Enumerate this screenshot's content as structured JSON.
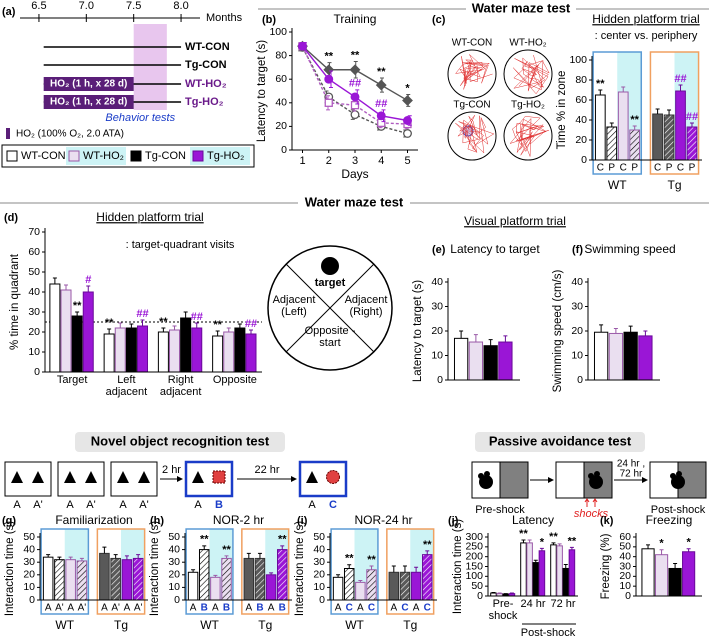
{
  "headers": [
    "Water maze test",
    "Water maze test",
    "Visual platform trial",
    "Novel object recognition test",
    "Passive avoidance test"
  ],
  "timeline": {
    "panel": "(a)",
    "xlim": [
      6.3,
      8.2
    ],
    "ticks": [
      6.5,
      {
        "value": 7,
        "label": "7.0"
      },
      7.5,
      {
        "value": 8,
        "label": "8.0"
      }
    ],
    "unit": "Months",
    "period": [
      6.55,
      8.0
    ],
    "treatment_period": [
      6.55,
      7.5
    ],
    "behavior_period": [
      7.5,
      7.85
    ],
    "behavior_label": "Behavior tests",
    "groups": [
      {
        "name": "WT-CON"
      },
      {
        "name": "Tg-CON"
      },
      {
        "name": "WT-HO₂",
        "treatment": "HO₂ (1 h, x 28 d)"
      },
      {
        "name": "Tg-HO₂",
        "treatment": "HO₂ (1 h, x 28 d)"
      }
    ],
    "note": "HO₂ (100% O₂, 2.0 ATA)"
  },
  "quadrant": {
    "target": "target",
    "left": "Adjacent (Left)",
    "right": "Adjacent (Right)",
    "opposite": "Opposite - start"
  },
  "nor_scheme": {
    "sessions": [
      [
        "A",
        "A'"
      ],
      [
        "A",
        "A'"
      ],
      [
        "A",
        "A'"
      ],
      [
        "A",
        "B"
      ],
      [
        "A",
        "C"
      ]
    ],
    "intervals": [
      "2 hr",
      "22 hr"
    ]
  },
  "passive_scheme": {
    "stages": [
      "Pre-shock",
      "Post-shock"
    ],
    "shock_label": "shocks",
    "interval": [
      "24 hr ,",
      "72 hr"
    ]
  },
  "chart_data": [
    {
      "type": "line",
      "panel": "(b)",
      "title": "Training",
      "xlabel": "Days",
      "ylabel": "Latency to target (s)",
      "x": [
        1,
        2,
        3,
        4,
        5
      ],
      "xlim": [
        0.6,
        5.4
      ],
      "xticks": [
        1,
        2,
        3,
        4,
        5
      ],
      "ylim": [
        0,
        100
      ],
      "yticks": [
        0,
        20,
        40,
        60,
        80,
        100
      ],
      "series": [
        {
          "color": "#ffffff",
          "edge": "#555555",
          "dash": true,
          "marker": "circle",
          "values": [
            87,
            45,
            30,
            20,
            14
          ],
          "errors": [
            3,
            5,
            4,
            3,
            3
          ]
        },
        {
          "color": "#ffffff",
          "edge": "#b05cc0",
          "dash": true,
          "marker": "square",
          "values": [
            88,
            40,
            38,
            23,
            22
          ],
          "errors": [
            3,
            6,
            5,
            4,
            4
          ]
        },
        {
          "color": "#555555",
          "edge": "#555555",
          "dash": false,
          "marker": "diamond",
          "values": [
            88,
            68,
            68,
            55,
            42
          ],
          "errors": [
            3,
            6,
            7,
            6,
            5
          ]
        },
        {
          "color": "#9a16d6",
          "edge": "#9a16d6",
          "dash": false,
          "marker": "circle",
          "values": [
            88,
            60,
            45,
            29,
            25
          ],
          "errors": [
            3,
            7,
            6,
            5,
            4
          ]
        }
      ],
      "annotations": [
        {
          "x": 2,
          "series": 2,
          "text": "**"
        },
        {
          "x": 3,
          "series": 2,
          "text": "**"
        },
        {
          "x": 4,
          "series": 2,
          "text": "**"
        },
        {
          "x": 5,
          "series": 2,
          "text": "*"
        },
        {
          "x": 3,
          "series": 3,
          "text": "##"
        },
        {
          "x": 4,
          "series": 3,
          "text": "##"
        }
      ]
    },
    {
      "type": "bar",
      "panel": "(c)",
      "title": "Hidden platform trial",
      "subtitle": ": center vs. periphery",
      "ylabel": "Time % in zone",
      "track_labels": [
        "WT-CON",
        "WT-HO₂",
        "Tg-CON",
        "Tg-HO₂"
      ],
      "categories": [
        "C",
        "P"
      ],
      "groups": [
        "WT",
        "Tg"
      ],
      "ylim": [
        0,
        100
      ],
      "yticks": [
        0,
        20,
        40,
        60,
        80,
        100
      ],
      "series": [
        {
          "color": "#ffffff",
          "edge": "#000000",
          "values": [
            65,
            33
          ],
          "errors": [
            5,
            4
          ]
        },
        {
          "color": "#eadff0",
          "edge": "#9a5aa8",
          "values": [
            68,
            30
          ],
          "errors": [
            5,
            4
          ]
        },
        {
          "color": "#595959",
          "edge": "#333333",
          "values": [
            46,
            45
          ],
          "errors": [
            5,
            5
          ]
        },
        {
          "color": "#9a16d6",
          "edge": "#6a0a9a",
          "values": [
            69,
            33
          ],
          "errors": [
            6,
            4
          ]
        }
      ],
      "annotations": [
        {
          "series": 0,
          "category": 0,
          "text": "**"
        },
        {
          "series": 1,
          "category": 1,
          "text": "**"
        },
        {
          "series": 3,
          "category": 0,
          "text": "##"
        },
        {
          "series": 3,
          "category": 1,
          "text": "##"
        }
      ]
    },
    {
      "type": "bar",
      "panel": "(d)",
      "title": "Hidden platform trial",
      "subtitle": ": target-quadrant visits",
      "ylabel": "% time in quadrant",
      "categories": [
        "Target",
        "Left adjacent",
        "Right adjacent",
        "Opposite"
      ],
      "ylim": [
        0,
        70
      ],
      "yticks": [
        0,
        10,
        20,
        30,
        40,
        50,
        60,
        70
      ],
      "reference_line": 25,
      "series": [
        {
          "name": "WT-CON",
          "color": "#ffffff",
          "edge": "#000000",
          "values": [
            44,
            19,
            20,
            18
          ],
          "errors": [
            3,
            2.5,
            2,
            2.5
          ]
        },
        {
          "name": "WT-HO₂",
          "color": "#eadff0",
          "edge": "#9a5aa8",
          "values": [
            41,
            22,
            21,
            20
          ],
          "errors": [
            2.5,
            2.5,
            2,
            2
          ]
        },
        {
          "name": "Tg-CON",
          "color": "#000000",
          "edge": "#000000",
          "values": [
            28,
            22,
            27,
            22
          ],
          "errors": [
            2,
            2,
            3,
            2
          ]
        },
        {
          "name": "Tg-HO₂",
          "color": "#9a16d6",
          "edge": "#6a0a9a",
          "values": [
            40,
            23,
            22,
            19
          ],
          "errors": [
            3,
            3,
            2.5,
            2
          ]
        }
      ],
      "annotations": [
        {
          "series": 2,
          "category": 0,
          "text": "**"
        },
        {
          "series": 3,
          "category": 0,
          "text": "#"
        },
        {
          "series": 0,
          "category": 1,
          "text": "**"
        },
        {
          "series": 3,
          "category": 1,
          "text": "##"
        },
        {
          "series": 0,
          "category": 2,
          "text": "**"
        },
        {
          "series": 3,
          "category": 2,
          "text": "##"
        },
        {
          "series": 0,
          "category": 3,
          "text": "**"
        },
        {
          "series": 3,
          "category": 3,
          "text": "##"
        }
      ]
    },
    {
      "type": "bar",
      "panel": "(e)",
      "title": "Latency to target",
      "ylabel": "Latency to target (s)",
      "categories": [
        null
      ],
      "ylim": [
        0,
        40
      ],
      "yticks": [
        0,
        10,
        20,
        30,
        40
      ],
      "series": [
        {
          "color": "#ffffff",
          "edge": "#000000",
          "values": [
            17
          ],
          "errors": [
            3
          ]
        },
        {
          "color": "#eadff0",
          "edge": "#9a5aa8",
          "values": [
            15.5
          ],
          "errors": [
            3
          ]
        },
        {
          "color": "#000000",
          "edge": "#000000",
          "values": [
            14
          ],
          "errors": [
            2.5
          ]
        },
        {
          "color": "#9a16d6",
          "edge": "#6a0a9a",
          "values": [
            15.5
          ],
          "errors": [
            2.5
          ]
        }
      ]
    },
    {
      "type": "bar",
      "panel": "(f)",
      "title": "Swimming speed",
      "ylabel": "Swimming speed (cm/s)",
      "categories": [
        null
      ],
      "ylim": [
        0,
        40
      ],
      "yticks": [
        0,
        10,
        20,
        30,
        40
      ],
      "series": [
        {
          "color": "#ffffff",
          "edge": "#000000",
          "values": [
            19.5
          ],
          "errors": [
            3
          ]
        },
        {
          "color": "#eadff0",
          "edge": "#9a5aa8",
          "values": [
            19
          ],
          "errors": [
            2
          ]
        },
        {
          "color": "#000000",
          "edge": "#000000",
          "values": [
            19.5
          ],
          "errors": [
            2.5
          ]
        },
        {
          "color": "#9a16d6",
          "edge": "#6a0a9a",
          "values": [
            18
          ],
          "errors": [
            2
          ]
        }
      ]
    },
    {
      "type": "bar",
      "panel": "(g)",
      "title": "Familiarization",
      "ylabel": "Interaction time (s)",
      "categories": [
        "A",
        "A'"
      ],
      "groups": [
        "WT",
        "Tg"
      ],
      "ylim": [
        0,
        50
      ],
      "yticks": [
        0,
        10,
        20,
        30,
        40,
        50
      ],
      "series": [
        {
          "color": "#ffffff",
          "edge": "#000000",
          "values": [
            34,
            32
          ],
          "errors": [
            2,
            2
          ]
        },
        {
          "color": "#eadff0",
          "edge": "#9a5aa8",
          "values": [
            32,
            31
          ],
          "errors": [
            2,
            2
          ]
        },
        {
          "color": "#595959",
          "edge": "#333333",
          "values": [
            37,
            33
          ],
          "errors": [
            5,
            3
          ]
        },
        {
          "color": "#9a16d6",
          "edge": "#6a0a9a",
          "values": [
            32,
            33
          ],
          "errors": [
            3,
            3
          ]
        }
      ]
    },
    {
      "type": "bar",
      "panel": "(h)",
      "title": "NOR-2 hr",
      "ylabel": "Interaction time (s)",
      "categories": [
        "A",
        "B"
      ],
      "groups": [
        "WT",
        "Tg"
      ],
      "ylim": [
        0,
        50
      ],
      "yticks": [
        0,
        10,
        20,
        30,
        40,
        50
      ],
      "series": [
        {
          "color": "#ffffff",
          "edge": "#000000",
          "values": [
            22,
            40
          ],
          "errors": [
            2,
            3
          ]
        },
        {
          "color": "#eadff0",
          "edge": "#9a5aa8",
          "values": [
            18,
            33
          ],
          "errors": [
            1.5,
            2
          ]
        },
        {
          "color": "#595959",
          "edge": "#333333",
          "values": [
            33,
            33
          ],
          "errors": [
            4,
            4
          ]
        },
        {
          "color": "#9a16d6",
          "edge": "#6a0a9a",
          "values": [
            20,
            40
          ],
          "errors": [
            1.5,
            3
          ]
        }
      ],
      "annotations": [
        {
          "series": 0,
          "category": 1,
          "text": "**"
        },
        {
          "series": 1,
          "category": 1,
          "text": "**"
        },
        {
          "series": 3,
          "category": 1,
          "text": "**"
        }
      ]
    },
    {
      "type": "bar",
      "panel": "(i)",
      "title": "NOR-24 hr",
      "ylabel": "Interaction time (s)",
      "categories": [
        "A",
        "C"
      ],
      "groups": [
        "WT",
        "Tg"
      ],
      "ylim": [
        0,
        50
      ],
      "yticks": [
        0,
        10,
        20,
        30,
        40,
        50
      ],
      "series": [
        {
          "color": "#ffffff",
          "edge": "#000000",
          "values": [
            18,
            25
          ],
          "errors": [
            2,
            3
          ]
        },
        {
          "color": "#eadff0",
          "edge": "#9a5aa8",
          "values": [
            14,
            24
          ],
          "errors": [
            1.5,
            3
          ]
        },
        {
          "color": "#595959",
          "edge": "#333333",
          "values": [
            22,
            22
          ],
          "errors": [
            5,
            5
          ]
        },
        {
          "color": "#9a16d6",
          "edge": "#6a0a9a",
          "values": [
            22,
            36
          ],
          "errors": [
            4,
            3
          ]
        }
      ],
      "annotations": [
        {
          "series": 0,
          "category": 1,
          "text": "**"
        },
        {
          "series": 1,
          "category": 1,
          "text": "**"
        },
        {
          "series": 3,
          "category": 1,
          "text": "**"
        }
      ]
    },
    {
      "type": "bar",
      "panel": "(j)",
      "title": "Latency",
      "ylabel": "Interaction time (s)",
      "categories": [
        "Pre-shock",
        "24 hr",
        "72 hr"
      ],
      "group_label": "Post-shock",
      "ylim": [
        0,
        300
      ],
      "yticks": [
        0,
        50,
        100,
        150,
        200,
        250,
        300
      ],
      "series": [
        {
          "color": "#ffffff",
          "edge": "#000000",
          "values": [
            15,
            270,
            260
          ],
          "errors": [
            3,
            15,
            10
          ]
        },
        {
          "color": "#eadff0",
          "edge": "#9a5aa8",
          "values": [
            12,
            270,
            255
          ],
          "errors": [
            3,
            15,
            10
          ]
        },
        {
          "color": "#000000",
          "edge": "#000000",
          "values": [
            10,
            170,
            140
          ],
          "errors": [
            2,
            12,
            20
          ]
        },
        {
          "color": "#9a16d6",
          "edge": "#6a0a9a",
          "values": [
            12,
            230,
            235
          ],
          "errors": [
            3,
            12,
            12
          ]
        }
      ],
      "annotations": [
        {
          "series": 0,
          "category": 1,
          "text": "**"
        },
        {
          "series": 3,
          "category": 1,
          "text": "*"
        },
        {
          "series": 0,
          "category": 2,
          "text": "**"
        },
        {
          "series": 3,
          "category": 2,
          "text": "**"
        }
      ]
    },
    {
      "type": "bar",
      "panel": "(k)",
      "title": "Freezing",
      "ylabel": "Freezing (%)",
      "categories": [
        null
      ],
      "ylim": [
        0,
        60
      ],
      "yticks": [
        0,
        10,
        20,
        30,
        40,
        50,
        60
      ],
      "series": [
        {
          "color": "#ffffff",
          "edge": "#000000",
          "values": [
            48
          ],
          "errors": [
            4
          ]
        },
        {
          "color": "#eadff0",
          "edge": "#9a5aa8",
          "values": [
            42
          ],
          "errors": [
            5
          ]
        },
        {
          "color": "#000000",
          "edge": "#000000",
          "values": [
            28
          ],
          "errors": [
            5
          ]
        },
        {
          "color": "#9a16d6",
          "edge": "#6a0a9a",
          "values": [
            45
          ],
          "errors": [
            3
          ]
        }
      ],
      "annotations": [
        {
          "series": 1,
          "category": 0,
          "text": "*"
        },
        {
          "series": 3,
          "category": 0,
          "text": "*"
        }
      ]
    }
  ]
}
